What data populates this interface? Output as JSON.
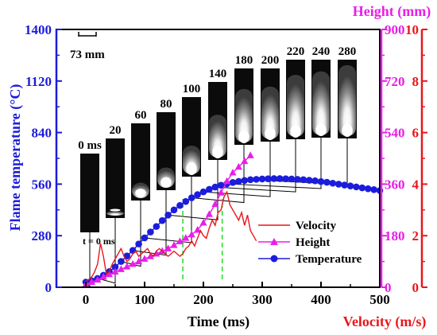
{
  "chart_data": {
    "type": "line",
    "colors": {
      "temperature": "#1c1cdc",
      "height": "#e81ee8",
      "velocity": "#e8171b",
      "marker_line": "#22dd22",
      "annotation": "#000000"
    },
    "xlabel": "Time (ms)",
    "xlim": [
      -50,
      500
    ],
    "xticks": [
      "0",
      "100",
      "200",
      "300",
      "400",
      "500"
    ],
    "axes": {
      "temperature": {
        "label": "Flame temperature (°C)",
        "ylim": [
          0,
          1400
        ],
        "ticks": [
          "0",
          "280",
          "560",
          "840",
          "1120",
          "1400"
        ]
      },
      "height": {
        "label": "Height (mm)",
        "ylim": [
          0,
          900
        ],
        "ticks": [
          "0",
          "180",
          "360",
          "540",
          "720",
          "900"
        ]
      },
      "velocity": {
        "label": "Velocity (m/s)",
        "ylim": [
          0,
          10
        ],
        "ticks": [
          "0",
          "2",
          "4",
          "6",
          "8",
          "10"
        ]
      }
    },
    "legend": {
      "placement": "inside-lower-right",
      "entries": [
        "Velocity",
        "Height",
        "Temperature"
      ]
    },
    "series": [
      {
        "name": "Temperature",
        "axis": "temperature",
        "x": [
          0,
          10,
          20,
          30,
          40,
          50,
          60,
          70,
          80,
          90,
          100,
          110,
          120,
          130,
          140,
          150,
          160,
          170,
          180,
          190,
          200,
          210,
          220,
          230,
          240,
          250,
          260,
          270,
          280,
          290,
          300,
          310,
          320,
          330,
          340,
          350,
          360,
          370,
          380,
          390,
          400,
          410,
          420,
          430,
          440,
          450,
          460,
          470,
          480,
          490,
          500
        ],
        "values": [
          28,
          35,
          48,
          65,
          85,
          110,
          140,
          170,
          200,
          235,
          268,
          300,
          330,
          362,
          392,
          420,
          444,
          466,
          486,
          503,
          518,
          532,
          544,
          554,
          562,
          569,
          575,
          580,
          584,
          586,
          588,
          589,
          590,
          590,
          589,
          588,
          586,
          584,
          581,
          578,
          574,
          570,
          565,
          560,
          555,
          550,
          545,
          540,
          535,
          530,
          525
        ]
      },
      {
        "name": "Height",
        "axis": "height",
        "x": [
          0,
          10,
          20,
          30,
          40,
          50,
          60,
          70,
          80,
          90,
          100,
          110,
          120,
          130,
          140,
          150,
          160,
          170,
          180,
          190,
          200,
          210,
          220,
          230,
          240,
          250,
          260,
          270,
          280
        ],
        "values": [
          10,
          18,
          26,
          36,
          45,
          54,
          63,
          72,
          81,
          90,
          99,
          108,
          117,
          126,
          135,
          147,
          160,
          172,
          184,
          200,
          225,
          255,
          290,
          330,
          370,
          400,
          420,
          440,
          460
        ]
      },
      {
        "name": "Velocity",
        "axis": "velocity",
        "x": [
          0,
          5,
          10,
          15,
          20,
          25,
          30,
          35,
          40,
          45,
          50,
          55,
          60,
          65,
          70,
          75,
          80,
          85,
          90,
          95,
          100,
          105,
          110,
          115,
          120,
          125,
          130,
          135,
          140,
          145,
          150,
          155,
          160,
          165,
          170,
          175,
          180,
          185,
          190,
          195,
          200,
          205,
          210,
          215,
          220,
          225,
          230,
          235,
          240,
          245,
          250,
          255,
          260,
          265,
          270,
          275,
          280,
          285,
          290
        ],
        "values": [
          0.2,
          0.3,
          0.4,
          0.6,
          0.9,
          1.7,
          1.2,
          0.5,
          0.6,
          0.9,
          1.1,
          1.3,
          1.5,
          1.2,
          1.0,
          1.1,
          1.3,
          1.4,
          1.2,
          1.3,
          1.4,
          1.5,
          1.3,
          1.2,
          1.4,
          1.5,
          1.4,
          1.3,
          1.2,
          1.3,
          1.4,
          1.3,
          1.2,
          1.3,
          1.5,
          1.6,
          1.8,
          1.6,
          1.9,
          2.2,
          2.0,
          1.9,
          2.3,
          2.6,
          2.4,
          2.9,
          3.0,
          3.5,
          3.7,
          3.2,
          3.0,
          2.8,
          2.6,
          2.9,
          2.4,
          2.8,
          2.2,
          2.0,
          1.8
        ]
      }
    ],
    "markers": [
      165,
      232
    ],
    "frames": [
      {
        "label": "0 ms",
        "t": 0
      },
      {
        "label": "20",
        "t": 20
      },
      {
        "label": "60",
        "t": 60
      },
      {
        "label": "80",
        "t": 80
      },
      {
        "label": "100",
        "t": 100
      },
      {
        "label": "140",
        "t": 140
      },
      {
        "label": "180",
        "t": 180
      },
      {
        "label": "200",
        "t": 200
      },
      {
        "label": "220",
        "t": 220
      },
      {
        "label": "240",
        "t": 240
      },
      {
        "label": "280",
        "t": 280
      }
    ],
    "annotations": {
      "scale_bar": "73 mm",
      "start_label": "t = 0 ms"
    }
  }
}
